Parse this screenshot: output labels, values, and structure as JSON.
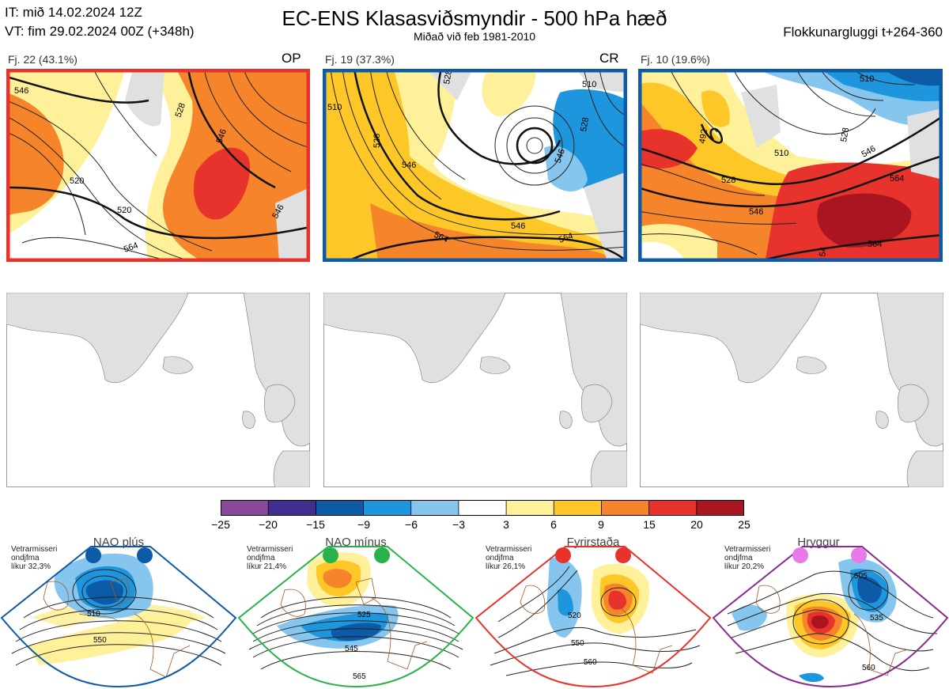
{
  "header": {
    "it_label": "IT: mið 14.02.2024 12Z",
    "vt_label": "VT: fim 29.02.2024 00Z  (+348h)",
    "title": "EC-ENS Klasasviðsmyndir - 500 hPa hæð",
    "subtitle": "Miðað við feb 1981-2010",
    "window": "Flokkunargluggi t+264-360"
  },
  "clusters": [
    {
      "label": "Fj. 22 (43.1%)",
      "tag": "OP",
      "border": "#e8322c",
      "contours": [
        "546",
        "528",
        "520",
        "546",
        "564",
        "546",
        "520"
      ]
    },
    {
      "label": "Fj. 19 (37.3%)",
      "tag": "CR",
      "border": "#0d5aa7",
      "contours": [
        "510",
        "528",
        "546",
        "528",
        "546",
        "564",
        "528",
        "510",
        "546",
        "564"
      ]
    },
    {
      "label": "Fj. 10 (19.6%)",
      "tag": "",
      "border": "#0d5aa7",
      "contours": [
        "510",
        "492",
        "510",
        "528",
        "546",
        "564",
        "528",
        "546",
        "564",
        "54"
      ]
    }
  ],
  "colorbar": {
    "ticks": [
      "−25",
      "−20",
      "−15",
      "−9",
      "−6",
      "−3",
      "3",
      "6",
      "9",
      "15",
      "20",
      "25"
    ],
    "colors": [
      "#8a4a9c",
      "#432d8f",
      "#0d5aa7",
      "#1e96de",
      "#86c6ee",
      "#ffffff",
      "#fff19a",
      "#fdc827",
      "#f5842b",
      "#e8322c",
      "#a91621"
    ]
  },
  "regimes": [
    {
      "name": "NAO plús",
      "season": "Vetrarmisseri",
      "label": "ondjfma",
      "prob": "líkur 32,3%",
      "dot_color": "#0d5aa7",
      "border": "#0d5aa7",
      "contours": [
        "510",
        "550"
      ]
    },
    {
      "name": "NAO mínus",
      "season": "Vetrarmisseri",
      "label": "ondjfma",
      "prob": "líkur 21,4%",
      "dot_color": "#2ab24a",
      "border": "#2ab24a",
      "contours": [
        "525",
        "545",
        "565"
      ]
    },
    {
      "name": "Fyrirstaða",
      "season": "Vetrarmisseri",
      "label": "ondjfma",
      "prob": "líkur 26,1%",
      "dot_color": "#e8322c",
      "border": "#e8322c",
      "contours": [
        "520",
        "550",
        "560"
      ]
    },
    {
      "name": "Hryggur",
      "season": "Vetrarmisseri",
      "label": "ondjfma",
      "prob": "líkur 20,2%",
      "dot_color": "#e879e8",
      "border": "#8a2a8c",
      "contours": [
        "505",
        "535",
        "560"
      ]
    }
  ]
}
